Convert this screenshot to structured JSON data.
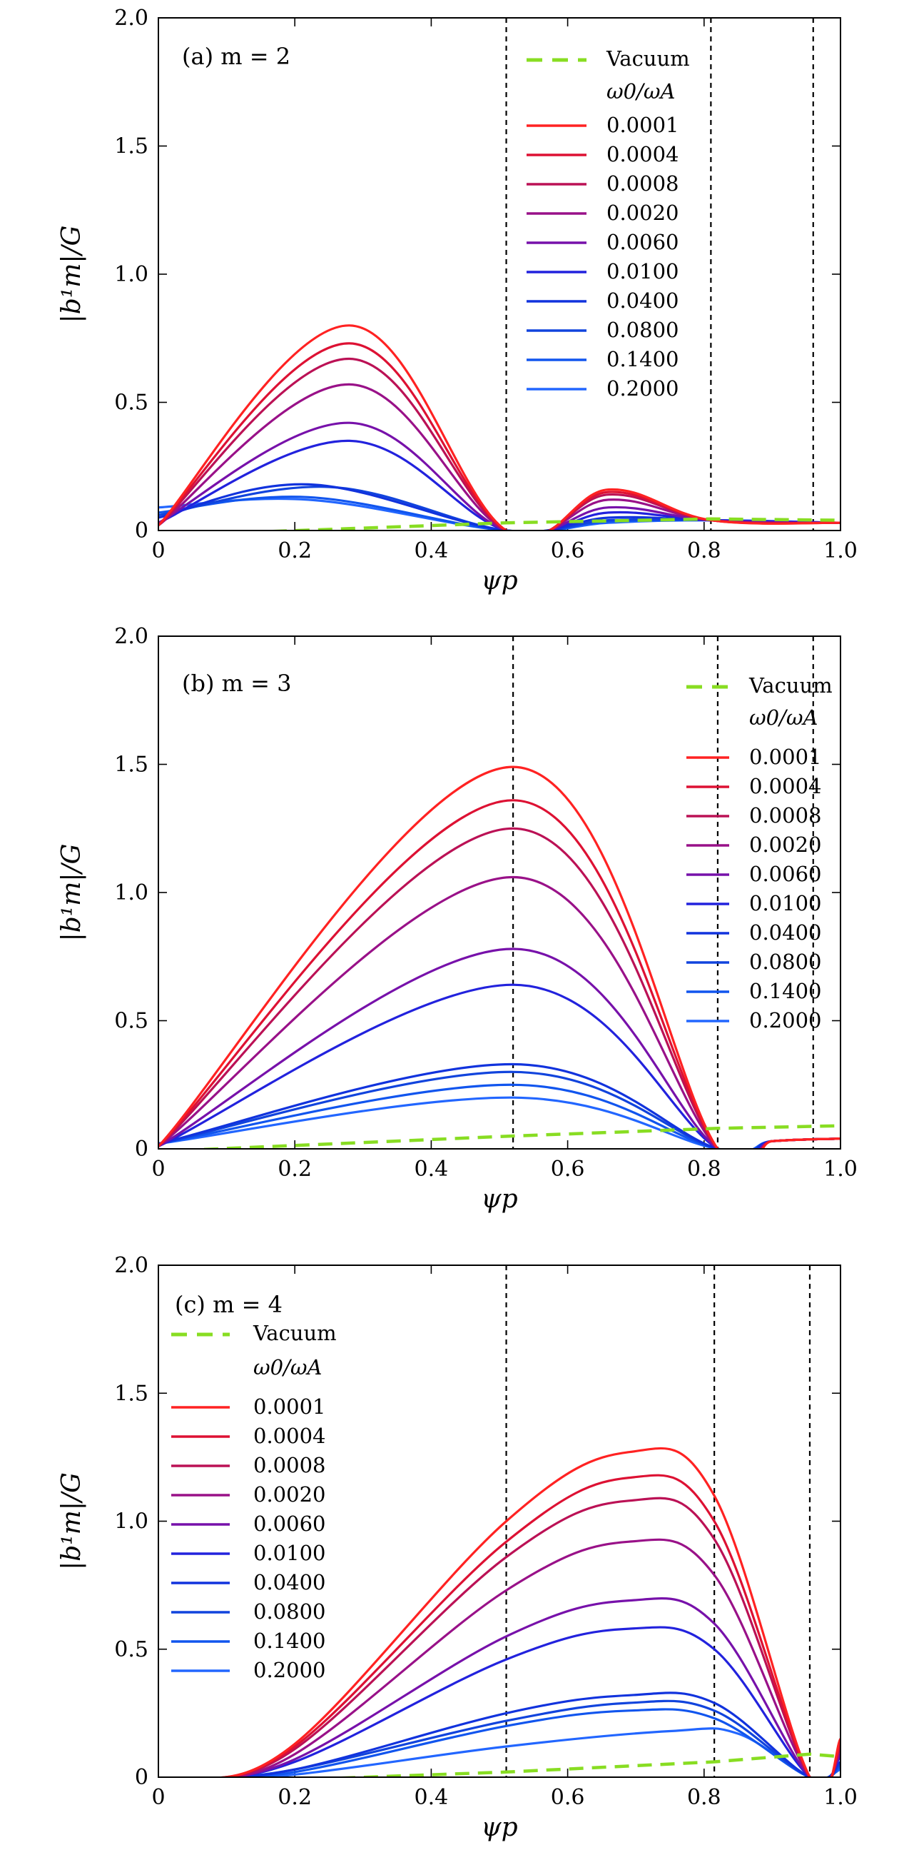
{
  "colors": {
    "vacuum": "#88dd22",
    "rational_surface": "#000000",
    "series": [
      "#ff2222",
      "#dd1133",
      "#bb1155",
      "#991188",
      "#7711aa",
      "#2222dd",
      "#1133dd",
      "#1144dd",
      "#1155ee",
      "#2266ff"
    ]
  },
  "legend": {
    "vacuum_label": "Vacuum",
    "title": "ω0/ωA",
    "entries": [
      "0.0001",
      "0.0004",
      "0.0008",
      "0.0020",
      "0.0060",
      "0.0100",
      "0.0400",
      "0.0800",
      "0.1400",
      "0.2000"
    ]
  },
  "chart_data": [
    {
      "type": "line",
      "panel_label": "(a)  m = 2",
      "xlabel": "ψp",
      "ylabel": "|b¹m|/G",
      "xlim": [
        0,
        1.0
      ],
      "ylim": [
        0,
        2.0
      ],
      "xticks": [
        "0",
        "0.2",
        "0.4",
        "0.6",
        "0.8",
        "1.0"
      ],
      "yticks": [
        "0",
        "0.5",
        "1.0",
        "1.5",
        "2.0"
      ],
      "legend_position": "top-right",
      "rational_surfaces": [
        0.51,
        0.81,
        0.96
      ],
      "vacuum": {
        "x": [
          0,
          0.51,
          0.81,
          1.0
        ],
        "y": [
          -0.02,
          0.03,
          0.045,
          0.04
        ]
      },
      "series": [
        {
          "name": "0.0001",
          "x": [
            0,
            0.28,
            0.51,
            0.66,
            0.81,
            1.0
          ],
          "y": [
            0.02,
            0.8,
            0.0,
            0.16,
            0.04,
            0.03
          ]
        },
        {
          "name": "0.0004",
          "x": [
            0,
            0.28,
            0.51,
            0.66,
            0.81,
            1.0
          ],
          "y": [
            0.02,
            0.73,
            0.0,
            0.15,
            0.04,
            0.03
          ]
        },
        {
          "name": "0.0008",
          "x": [
            0,
            0.28,
            0.51,
            0.66,
            0.81,
            1.0
          ],
          "y": [
            0.02,
            0.67,
            0.0,
            0.14,
            0.04,
            0.03
          ]
        },
        {
          "name": "0.0020",
          "x": [
            0,
            0.28,
            0.51,
            0.66,
            0.81,
            1.0
          ],
          "y": [
            0.02,
            0.57,
            0.0,
            0.12,
            0.04,
            0.03
          ]
        },
        {
          "name": "0.0060",
          "x": [
            0,
            0.28,
            0.51,
            0.66,
            0.81,
            1.0
          ],
          "y": [
            0.03,
            0.42,
            0.0,
            0.09,
            0.04,
            0.03
          ]
        },
        {
          "name": "0.0100",
          "x": [
            0,
            0.28,
            0.51,
            0.66,
            0.81,
            1.0
          ],
          "y": [
            0.03,
            0.35,
            0.0,
            0.07,
            0.04,
            0.03
          ]
        },
        {
          "name": "0.0400",
          "x": [
            0,
            0.22,
            0.51,
            0.66,
            0.81,
            1.0
          ],
          "y": [
            0.05,
            0.18,
            0.0,
            0.05,
            0.04,
            0.03
          ]
        },
        {
          "name": "0.0800",
          "x": [
            0,
            0.25,
            0.51,
            0.66,
            0.81,
            1.0
          ],
          "y": [
            0.06,
            0.17,
            0.0,
            0.04,
            0.04,
            0.03
          ]
        },
        {
          "name": "0.1400",
          "x": [
            0,
            0.22,
            0.51,
            0.66,
            0.81,
            1.0
          ],
          "y": [
            0.07,
            0.13,
            0.0,
            0.035,
            0.04,
            0.03
          ]
        },
        {
          "name": "0.2000",
          "x": [
            0,
            0.22,
            0.51,
            0.66,
            0.81,
            1.0
          ],
          "y": [
            0.09,
            0.12,
            0.0,
            0.03,
            0.04,
            0.03
          ]
        }
      ]
    },
    {
      "type": "line",
      "panel_label": "(b)  m = 3",
      "xlabel": "ψp",
      "ylabel": "|b¹m|/G",
      "xlim": [
        0,
        1.0
      ],
      "ylim": [
        0,
        2.0
      ],
      "xticks": [
        "0",
        "0.2",
        "0.4",
        "0.6",
        "0.8",
        "1.0"
      ],
      "yticks": [
        "0",
        "0.5",
        "1.0",
        "1.5",
        "2.0"
      ],
      "legend_position": "right",
      "rational_surfaces": [
        0.52,
        0.82,
        0.96
      ],
      "vacuum": {
        "x": [
          0,
          0.52,
          0.82,
          1.0
        ],
        "y": [
          -0.01,
          0.05,
          0.08,
          0.09
        ]
      },
      "series": [
        {
          "name": "0.0001",
          "x": [
            0,
            0.52,
            0.82,
            0.9,
            1.0
          ],
          "y": [
            0.01,
            1.49,
            0.0,
            0.03,
            0.04
          ]
        },
        {
          "name": "0.0004",
          "x": [
            0,
            0.52,
            0.82,
            0.9,
            1.0
          ],
          "y": [
            0.01,
            1.36,
            0.0,
            0.03,
            0.04
          ]
        },
        {
          "name": "0.0008",
          "x": [
            0,
            0.52,
            0.82,
            0.9,
            1.0
          ],
          "y": [
            0.01,
            1.25,
            0.0,
            0.03,
            0.04
          ]
        },
        {
          "name": "0.0020",
          "x": [
            0,
            0.52,
            0.82,
            0.9,
            1.0
          ],
          "y": [
            0.01,
            1.06,
            0.0,
            0.03,
            0.04
          ]
        },
        {
          "name": "0.0060",
          "x": [
            0,
            0.52,
            0.82,
            0.9,
            1.0
          ],
          "y": [
            0.01,
            0.78,
            0.0,
            0.03,
            0.04
          ]
        },
        {
          "name": "0.0100",
          "x": [
            0,
            0.52,
            0.82,
            0.9,
            1.0
          ],
          "y": [
            0.01,
            0.64,
            0.0,
            0.03,
            0.04
          ]
        },
        {
          "name": "0.0400",
          "x": [
            0,
            0.52,
            0.82,
            0.9,
            1.0
          ],
          "y": [
            0.02,
            0.33,
            0.0,
            0.03,
            0.04
          ]
        },
        {
          "name": "0.0800",
          "x": [
            0,
            0.52,
            0.82,
            0.9,
            1.0
          ],
          "y": [
            0.02,
            0.3,
            0.0,
            0.03,
            0.04
          ]
        },
        {
          "name": "0.1400",
          "x": [
            0,
            0.52,
            0.82,
            0.9,
            1.0
          ],
          "y": [
            0.02,
            0.25,
            0.0,
            0.03,
            0.04
          ]
        },
        {
          "name": "0.2000",
          "x": [
            0,
            0.52,
            0.82,
            0.9,
            1.0
          ],
          "y": [
            0.02,
            0.2,
            0.0,
            0.03,
            0.04
          ]
        }
      ]
    },
    {
      "type": "line",
      "panel_label": "(c)  m = 4",
      "xlabel": "ψp",
      "ylabel": "|b¹m|/G",
      "xlim": [
        0,
        1.0
      ],
      "ylim": [
        0,
        2.0
      ],
      "xticks": [
        "0",
        "0.2",
        "0.4",
        "0.6",
        "0.8",
        "1.0"
      ],
      "yticks": [
        "0",
        "0.5",
        "1.0",
        "1.5",
        "2.0"
      ],
      "legend_position": "top-left",
      "rational_surfaces": [
        0.51,
        0.815,
        0.955
      ],
      "vacuum": {
        "x": [
          0,
          0.2,
          0.51,
          0.815,
          0.955,
          1.0
        ],
        "y": [
          -0.02,
          -0.01,
          0.02,
          0.06,
          0.09,
          0.08
        ]
      },
      "series": [
        {
          "name": "0.0001",
          "x": [
            0,
            0.04,
            0.2,
            0.51,
            0.69,
            0.815,
            0.955,
            1.0
          ],
          "y": [
            -0.01,
            -0.01,
            0.13,
            1.0,
            1.27,
            1.1,
            0.0,
            0.15
          ]
        },
        {
          "name": "0.0004",
          "x": [
            0,
            0.04,
            0.2,
            0.51,
            0.69,
            0.815,
            0.955,
            1.0
          ],
          "y": [
            -0.01,
            -0.01,
            0.12,
            0.92,
            1.17,
            1.0,
            0.0,
            0.13
          ]
        },
        {
          "name": "0.0008",
          "x": [
            0,
            0.04,
            0.2,
            0.51,
            0.69,
            0.815,
            0.955,
            1.0
          ],
          "y": [
            -0.01,
            -0.01,
            0.11,
            0.86,
            1.08,
            0.93,
            0.0,
            0.12
          ]
        },
        {
          "name": "0.0020",
          "x": [
            0,
            0.04,
            0.2,
            0.51,
            0.69,
            0.815,
            0.955,
            1.0
          ],
          "y": [
            -0.01,
            -0.01,
            0.09,
            0.73,
            0.92,
            0.79,
            0.0,
            0.11
          ]
        },
        {
          "name": "0.0060",
          "x": [
            0,
            0.04,
            0.2,
            0.51,
            0.69,
            0.815,
            0.955,
            1.0
          ],
          "y": [
            -0.01,
            -0.01,
            0.07,
            0.55,
            0.69,
            0.6,
            0.0,
            0.09
          ]
        },
        {
          "name": "0.0100",
          "x": [
            0,
            0.04,
            0.2,
            0.51,
            0.69,
            0.815,
            0.955,
            1.0
          ],
          "y": [
            -0.01,
            -0.01,
            0.06,
            0.46,
            0.58,
            0.5,
            0.0,
            0.08
          ]
        },
        {
          "name": "0.0400",
          "x": [
            0,
            0.04,
            0.2,
            0.51,
            0.69,
            0.815,
            0.955,
            1.0
          ],
          "y": [
            -0.01,
            -0.01,
            0.03,
            0.25,
            0.32,
            0.29,
            0.0,
            0.06
          ]
        },
        {
          "name": "0.0800",
          "x": [
            0,
            0.04,
            0.2,
            0.51,
            0.69,
            0.815,
            0.955,
            1.0
          ],
          "y": [
            -0.01,
            -0.01,
            0.03,
            0.22,
            0.29,
            0.26,
            0.0,
            0.05
          ]
        },
        {
          "name": "0.1400",
          "x": [
            0,
            0.04,
            0.2,
            0.51,
            0.69,
            0.815,
            0.955,
            1.0
          ],
          "y": [
            -0.01,
            -0.01,
            0.02,
            0.2,
            0.26,
            0.23,
            0.0,
            0.04
          ]
        },
        {
          "name": "0.2000",
          "x": [
            0,
            0.04,
            0.2,
            0.51,
            0.75,
            0.85,
            0.955,
            1.0
          ],
          "y": [
            -0.01,
            -0.01,
            0.01,
            0.12,
            0.18,
            0.17,
            0.0,
            0.03
          ]
        }
      ]
    }
  ]
}
